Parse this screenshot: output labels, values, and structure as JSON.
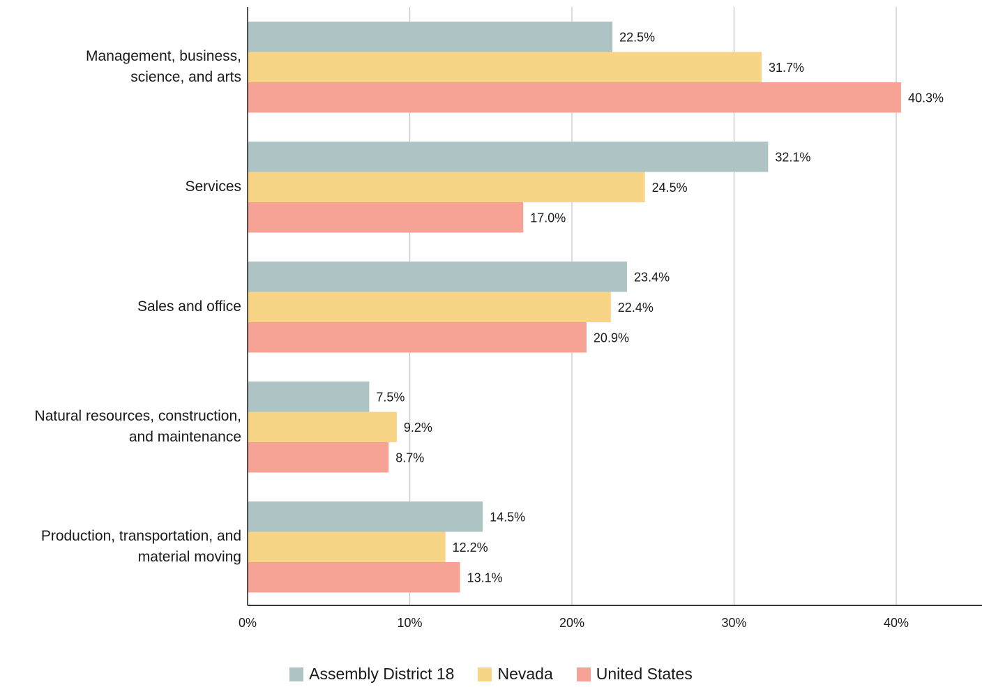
{
  "chart_data": {
    "type": "bar",
    "orientation": "horizontal",
    "categories": [
      "Management, business,\nscience, and arts",
      "Services",
      "Sales and office",
      "Natural resources, construction,\nand maintenance",
      "Production, transportation, and\nmaterial moving"
    ],
    "series": [
      {
        "name": "Assembly District 18",
        "color": "#aec4c4",
        "values": [
          22.5,
          32.1,
          23.4,
          7.5,
          14.5
        ]
      },
      {
        "name": "Nevada",
        "color": "#f7d486",
        "values": [
          31.7,
          24.5,
          22.4,
          9.2,
          12.2
        ]
      },
      {
        "name": "United States",
        "color": "#f6a396",
        "values": [
          40.3,
          17.0,
          20.9,
          8.7,
          13.1
        ]
      }
    ],
    "data_labels": [
      [
        "22.5%",
        "31.7%",
        "40.3%"
      ],
      [
        "32.1%",
        "24.5%",
        "17.0%"
      ],
      [
        "23.4%",
        "22.4%",
        "20.9%"
      ],
      [
        "7.5%",
        "9.2%",
        "8.7%"
      ],
      [
        "14.5%",
        "12.2%",
        "13.1%"
      ]
    ],
    "xticks": [
      "0%",
      "10%",
      "20%",
      "30%",
      "40%"
    ],
    "xtick_values": [
      0,
      10,
      20,
      30,
      40
    ],
    "xlim": [
      0,
      45
    ],
    "grid": true,
    "legend_position": "bottom"
  }
}
